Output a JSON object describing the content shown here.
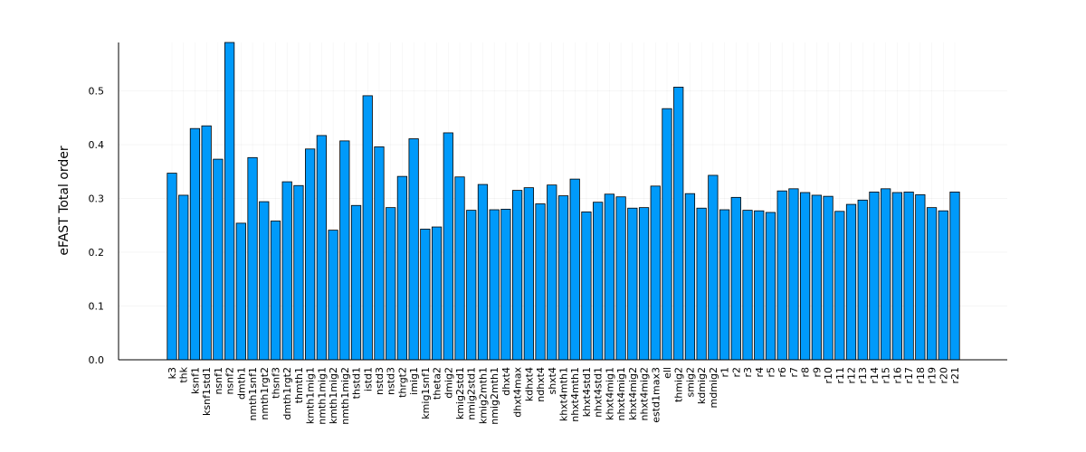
{
  "chart_data": {
    "type": "bar",
    "ylabel": "eFAST Total order",
    "xlabel": "",
    "ylim": [
      0,
      0.59
    ],
    "yticks": [
      0.0,
      0.1,
      0.2,
      0.3,
      0.4,
      0.5
    ],
    "ytick_labels": [
      "0.0",
      "0.1",
      "0.2",
      "0.3",
      "0.4",
      "0.5"
    ],
    "grid": true,
    "legend": "none",
    "bar_color": "#009AFA",
    "bar_edge_color": "#000000",
    "categories": [
      "k3",
      "thk",
      "ksnf1",
      "ksnf1std1",
      "nsnf1",
      "nsnf2",
      "dmth1",
      "nmth1snf1",
      "nmth1rgt2",
      "thsnf3",
      "dmth1rgt2",
      "thmth1",
      "kmth1mig1",
      "nmth1mig1",
      "kmth1mig2",
      "nmth1mig2",
      "thstd1",
      "istd1",
      "nstd3",
      "nstd3",
      "thrgt2",
      "imig1",
      "kmig1snf1",
      "theta2",
      "dmig2",
      "kmig2std1",
      "nmig2std1",
      "kmig2mth1",
      "nmig2mth1",
      "dhxt4",
      "dhxt4max",
      "kdhxt4",
      "ndhxt4",
      "shxt4",
      "khxt4mth1",
      "nhxt4mth1",
      "khxt4std1",
      "nhxt4std1",
      "khxt4mig1",
      "nhxt4mig1",
      "khxt4mig2",
      "nhxt4mig2",
      "estd1max3",
      "ell",
      "thmig2",
      "smig2",
      "kdmig2",
      "mdmig2",
      "r1",
      "r2",
      "r3",
      "r4",
      "r5",
      "r6",
      "r7",
      "r8",
      "r9",
      "r10",
      "r11",
      "r12",
      "r13",
      "r14",
      "r15",
      "r16",
      "r17",
      "r18",
      "r19",
      "r20",
      "r21"
    ],
    "values": [
      0.347,
      0.306,
      0.43,
      0.435,
      0.373,
      0.59,
      0.254,
      0.376,
      0.294,
      0.258,
      0.331,
      0.324,
      0.392,
      0.417,
      0.241,
      0.407,
      0.287,
      0.491,
      0.396,
      0.283,
      0.341,
      0.411,
      0.243,
      0.247,
      0.422,
      0.34,
      0.278,
      0.326,
      0.279,
      0.28,
      0.315,
      0.32,
      0.29,
      0.325,
      0.305,
      0.336,
      0.275,
      0.293,
      0.308,
      0.303,
      0.282,
      0.283,
      0.323,
      0.467,
      0.507,
      0.309,
      0.282,
      0.343,
      0.279,
      0.302,
      0.278,
      0.277,
      0.274,
      0.314,
      0.318,
      0.311,
      0.306,
      0.304,
      0.276,
      0.289,
      0.297,
      0.312,
      0.318,
      0.311,
      0.312,
      0.307,
      0.283,
      0.277,
      0.312
    ]
  }
}
